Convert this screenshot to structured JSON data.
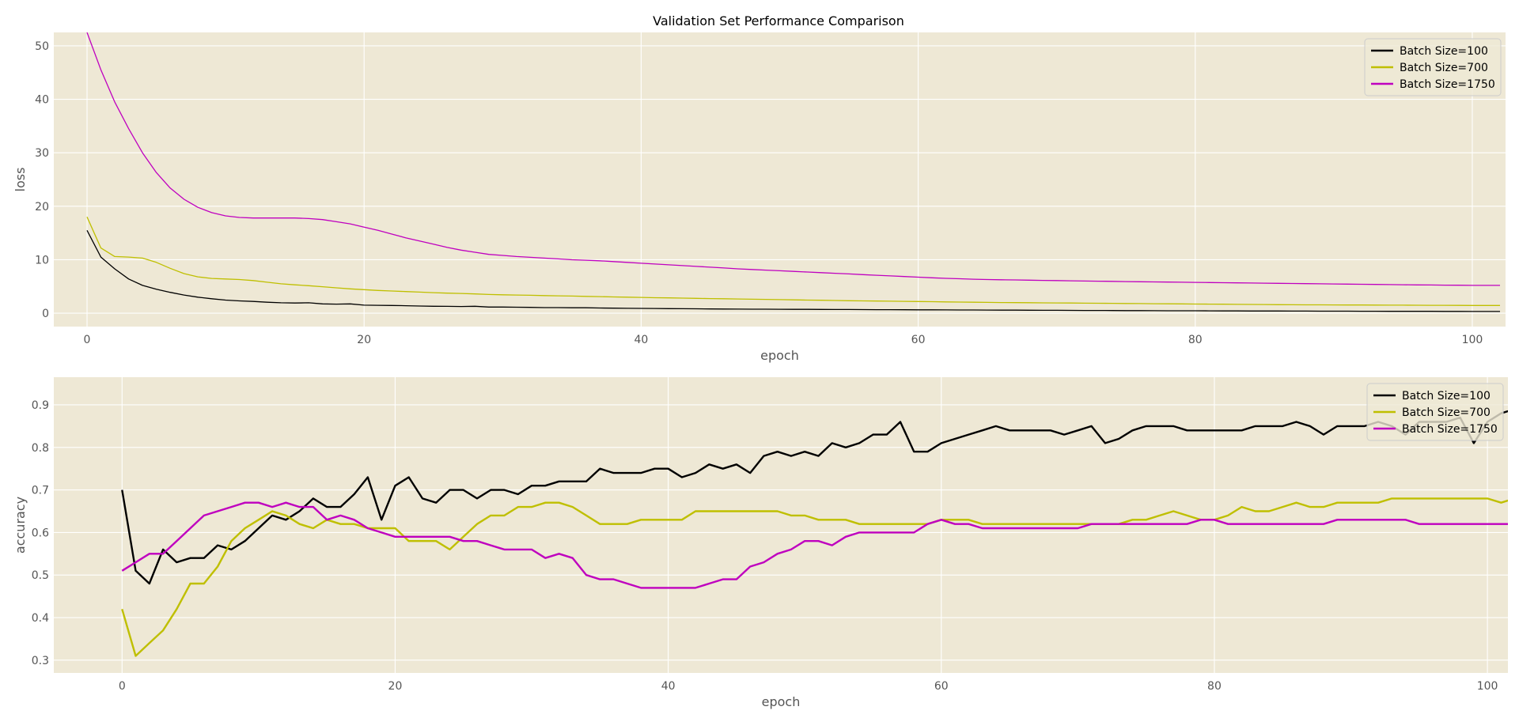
{
  "title": "Validation Set Performance Comparison",
  "colors": {
    "plot_background": "#eee8d5",
    "Batch Size=100": "#000000",
    "Batch Size=700": "#bfbf00",
    "Batch Size=1750": "#bf00bf"
  },
  "chart_data": [
    {
      "type": "line",
      "title": "Validation Set Performance Comparison",
      "xlabel": "epoch",
      "ylabel": "loss",
      "xlim": [
        -2.4,
        102.4
      ],
      "ylim": [
        -2.5,
        52.5
      ],
      "xticks": [
        0,
        20,
        40,
        60,
        80,
        100
      ],
      "yticks": [
        0,
        10,
        20,
        30,
        40,
        50
      ],
      "grid": true,
      "legend_position": "top-right",
      "x": [
        0,
        1,
        2,
        3,
        4,
        5,
        6,
        7,
        8,
        9,
        10,
        11,
        12,
        13,
        14,
        15,
        16,
        17,
        18,
        19,
        20,
        21,
        22,
        23,
        24,
        25,
        26,
        27,
        28,
        29,
        30,
        31,
        32,
        33,
        34,
        35,
        36,
        37,
        38,
        39,
        40,
        41,
        42,
        43,
        44,
        45,
        46,
        47,
        48,
        49,
        50,
        51,
        52,
        53,
        54,
        55,
        56,
        57,
        58,
        59,
        60,
        61,
        62,
        63,
        64,
        65,
        66,
        67,
        68,
        69,
        70,
        71,
        72,
        73,
        74,
        75,
        76,
        77,
        78,
        79,
        80,
        81,
        82,
        83,
        84,
        85,
        86,
        87,
        88,
        89,
        90,
        91,
        92,
        93,
        94,
        95,
        96,
        97,
        98,
        99,
        100,
        101,
        102
      ],
      "series": [
        {
          "name": "Batch Size=100",
          "values": [
            15.5,
            10.5,
            8.3,
            6.4,
            5.2,
            4.5,
            3.9,
            3.4,
            3.0,
            2.7,
            2.45,
            2.3,
            2.2,
            2.05,
            1.95,
            1.9,
            1.95,
            1.75,
            1.7,
            1.75,
            1.5,
            1.48,
            1.45,
            1.4,
            1.35,
            1.3,
            1.28,
            1.25,
            1.3,
            1.15,
            1.15,
            1.12,
            1.1,
            1.05,
            1.05,
            1.02,
            1.02,
            0.98,
            0.95,
            0.92,
            0.9,
            0.88,
            0.86,
            0.84,
            0.82,
            0.8,
            0.78,
            0.77,
            0.76,
            0.75,
            0.74,
            0.73,
            0.72,
            0.71,
            0.7,
            0.69,
            0.68,
            0.67,
            0.66,
            0.65,
            0.64,
            0.63,
            0.62,
            0.61,
            0.6,
            0.59,
            0.58,
            0.57,
            0.56,
            0.55,
            0.54,
            0.53,
            0.52,
            0.51,
            0.5,
            0.49,
            0.48,
            0.47,
            0.46,
            0.45,
            0.45,
            0.44,
            0.43,
            0.43,
            0.42,
            0.41,
            0.41,
            0.4,
            0.4,
            0.39,
            0.38,
            0.38,
            0.37,
            0.37,
            0.36,
            0.36,
            0.35,
            0.35,
            0.34,
            0.34,
            0.33,
            0.33,
            0.33
          ]
        },
        {
          "name": "Batch Size=700",
          "values": [
            18.0,
            12.2,
            10.6,
            10.5,
            10.3,
            9.5,
            8.4,
            7.4,
            6.8,
            6.5,
            6.4,
            6.3,
            6.1,
            5.8,
            5.5,
            5.3,
            5.15,
            4.95,
            4.75,
            4.55,
            4.4,
            4.25,
            4.15,
            4.05,
            3.95,
            3.85,
            3.75,
            3.7,
            3.6,
            3.5,
            3.45,
            3.4,
            3.35,
            3.3,
            3.25,
            3.2,
            3.15,
            3.1,
            3.05,
            3.0,
            2.95,
            2.9,
            2.86,
            2.82,
            2.78,
            2.74,
            2.7,
            2.66,
            2.62,
            2.58,
            2.54,
            2.5,
            2.46,
            2.42,
            2.38,
            2.34,
            2.3,
            2.27,
            2.24,
            2.21,
            2.18,
            2.15,
            2.12,
            2.09,
            2.06,
            2.03,
            2.0,
            1.98,
            1.96,
            1.94,
            1.92,
            1.9,
            1.88,
            1.86,
            1.84,
            1.82,
            1.8,
            1.78,
            1.76,
            1.74,
            1.72,
            1.7,
            1.68,
            1.66,
            1.64,
            1.62,
            1.6,
            1.58,
            1.57,
            1.56,
            1.55,
            1.54,
            1.53,
            1.52,
            1.51,
            1.5,
            1.49,
            1.48,
            1.47,
            1.46,
            1.45,
            1.45,
            1.45
          ]
        },
        {
          "name": "Batch Size=1750",
          "values": [
            52.5,
            45.5,
            39.5,
            34.5,
            30.0,
            26.3,
            23.4,
            21.3,
            19.8,
            18.8,
            18.2,
            17.9,
            17.8,
            17.8,
            17.8,
            17.8,
            17.7,
            17.5,
            17.1,
            16.7,
            16.1,
            15.5,
            14.8,
            14.1,
            13.5,
            12.9,
            12.3,
            11.8,
            11.4,
            11.0,
            10.8,
            10.6,
            10.45,
            10.3,
            10.15,
            10.0,
            9.9,
            9.8,
            9.65,
            9.5,
            9.35,
            9.2,
            9.05,
            8.9,
            8.75,
            8.6,
            8.45,
            8.3,
            8.18,
            8.06,
            7.94,
            7.82,
            7.7,
            7.58,
            7.46,
            7.34,
            7.22,
            7.1,
            6.98,
            6.86,
            6.74,
            6.62,
            6.52,
            6.44,
            6.36,
            6.3,
            6.26,
            6.22,
            6.18,
            6.14,
            6.1,
            6.06,
            6.02,
            5.98,
            5.95,
            5.92,
            5.89,
            5.86,
            5.83,
            5.8,
            5.77,
            5.74,
            5.71,
            5.68,
            5.65,
            5.62,
            5.59,
            5.56,
            5.53,
            5.5,
            5.47,
            5.44,
            5.41,
            5.38,
            5.35,
            5.32,
            5.29,
            5.27,
            5.25,
            5.23,
            5.21,
            5.2,
            5.2
          ]
        }
      ]
    },
    {
      "type": "line",
      "title": "",
      "xlabel": "epoch",
      "ylabel": "accuracy",
      "xlim": [
        -5,
        101.5
      ],
      "ylim": [
        0.27,
        0.965
      ],
      "xticks": [
        0,
        20,
        40,
        60,
        80,
        100
      ],
      "yticks": [
        0.3,
        0.4,
        0.5,
        0.6,
        0.7,
        0.8,
        0.9
      ],
      "grid": true,
      "legend_position": "top-right",
      "x": [
        0,
        1,
        2,
        3,
        4,
        5,
        6,
        7,
        8,
        9,
        10,
        11,
        12,
        13,
        14,
        15,
        16,
        17,
        18,
        19,
        20,
        21,
        22,
        23,
        24,
        25,
        26,
        27,
        28,
        29,
        30,
        31,
        32,
        33,
        34,
        35,
        36,
        37,
        38,
        39,
        40,
        41,
        42,
        43,
        44,
        45,
        46,
        47,
        48,
        49,
        50,
        51,
        52,
        53,
        54,
        55,
        56,
        57,
        58,
        59,
        60,
        61,
        62,
        63,
        64,
        65,
        66,
        67,
        68,
        69,
        70,
        71,
        72,
        73,
        74,
        75,
        76,
        77,
        78,
        79,
        80,
        81,
        82,
        83,
        84,
        85,
        86,
        87,
        88,
        89,
        90,
        91,
        92,
        93,
        94,
        95,
        96,
        97,
        98,
        99,
        100,
        101,
        102
      ],
      "series": [
        {
          "name": "Batch Size=100",
          "values": [
            0.7,
            0.51,
            0.48,
            0.56,
            0.53,
            0.54,
            0.54,
            0.57,
            0.56,
            0.58,
            0.61,
            0.64,
            0.63,
            0.65,
            0.68,
            0.66,
            0.66,
            0.69,
            0.73,
            0.63,
            0.71,
            0.73,
            0.68,
            0.67,
            0.7,
            0.7,
            0.68,
            0.7,
            0.7,
            0.69,
            0.71,
            0.71,
            0.72,
            0.72,
            0.72,
            0.75,
            0.74,
            0.74,
            0.74,
            0.75,
            0.75,
            0.73,
            0.74,
            0.76,
            0.75,
            0.76,
            0.74,
            0.78,
            0.79,
            0.78,
            0.79,
            0.78,
            0.81,
            0.8,
            0.81,
            0.83,
            0.83,
            0.86,
            0.79,
            0.79,
            0.81,
            0.82,
            0.83,
            0.84,
            0.85,
            0.84,
            0.84,
            0.84,
            0.84,
            0.83,
            0.84,
            0.85,
            0.81,
            0.82,
            0.84,
            0.85,
            0.85,
            0.85,
            0.84,
            0.84,
            0.84,
            0.84,
            0.84,
            0.85,
            0.85,
            0.85,
            0.86,
            0.85,
            0.83,
            0.85,
            0.85,
            0.85,
            0.86,
            0.85,
            0.83,
            0.86,
            0.86,
            0.86,
            0.87,
            0.81,
            0.86,
            0.88,
            0.89
          ]
        },
        {
          "name": "Batch Size=700",
          "values": [
            0.42,
            0.31,
            0.34,
            0.37,
            0.42,
            0.48,
            0.48,
            0.52,
            0.58,
            0.61,
            0.63,
            0.65,
            0.64,
            0.62,
            0.61,
            0.63,
            0.62,
            0.62,
            0.61,
            0.61,
            0.61,
            0.58,
            0.58,
            0.58,
            0.56,
            0.59,
            0.62,
            0.64,
            0.64,
            0.66,
            0.66,
            0.67,
            0.67,
            0.66,
            0.64,
            0.62,
            0.62,
            0.62,
            0.63,
            0.63,
            0.63,
            0.63,
            0.65,
            0.65,
            0.65,
            0.65,
            0.65,
            0.65,
            0.65,
            0.64,
            0.64,
            0.63,
            0.63,
            0.63,
            0.62,
            0.62,
            0.62,
            0.62,
            0.62,
            0.62,
            0.63,
            0.63,
            0.63,
            0.62,
            0.62,
            0.62,
            0.62,
            0.62,
            0.62,
            0.62,
            0.62,
            0.62,
            0.62,
            0.62,
            0.63,
            0.63,
            0.64,
            0.65,
            0.64,
            0.63,
            0.63,
            0.64,
            0.66,
            0.65,
            0.65,
            0.66,
            0.67,
            0.66,
            0.66,
            0.67,
            0.67,
            0.67,
            0.67,
            0.68,
            0.68,
            0.68,
            0.68,
            0.68,
            0.68,
            0.68,
            0.68,
            0.67,
            0.68
          ]
        },
        {
          "name": "Batch Size=1750",
          "values": [
            0.51,
            0.53,
            0.55,
            0.55,
            0.58,
            0.61,
            0.64,
            0.65,
            0.66,
            0.67,
            0.67,
            0.66,
            0.67,
            0.66,
            0.66,
            0.63,
            0.64,
            0.63,
            0.61,
            0.6,
            0.59,
            0.59,
            0.59,
            0.59,
            0.59,
            0.58,
            0.58,
            0.57,
            0.56,
            0.56,
            0.56,
            0.54,
            0.55,
            0.54,
            0.5,
            0.49,
            0.49,
            0.48,
            0.47,
            0.47,
            0.47,
            0.47,
            0.47,
            0.48,
            0.49,
            0.49,
            0.52,
            0.53,
            0.55,
            0.56,
            0.58,
            0.58,
            0.57,
            0.59,
            0.6,
            0.6,
            0.6,
            0.6,
            0.6,
            0.62,
            0.63,
            0.62,
            0.62,
            0.61,
            0.61,
            0.61,
            0.61,
            0.61,
            0.61,
            0.61,
            0.61,
            0.62,
            0.62,
            0.62,
            0.62,
            0.62,
            0.62,
            0.62,
            0.62,
            0.63,
            0.63,
            0.62,
            0.62,
            0.62,
            0.62,
            0.62,
            0.62,
            0.62,
            0.62,
            0.63,
            0.63,
            0.63,
            0.63,
            0.63,
            0.63,
            0.62,
            0.62,
            0.62,
            0.62,
            0.62,
            0.62,
            0.62,
            0.62
          ]
        }
      ]
    }
  ]
}
